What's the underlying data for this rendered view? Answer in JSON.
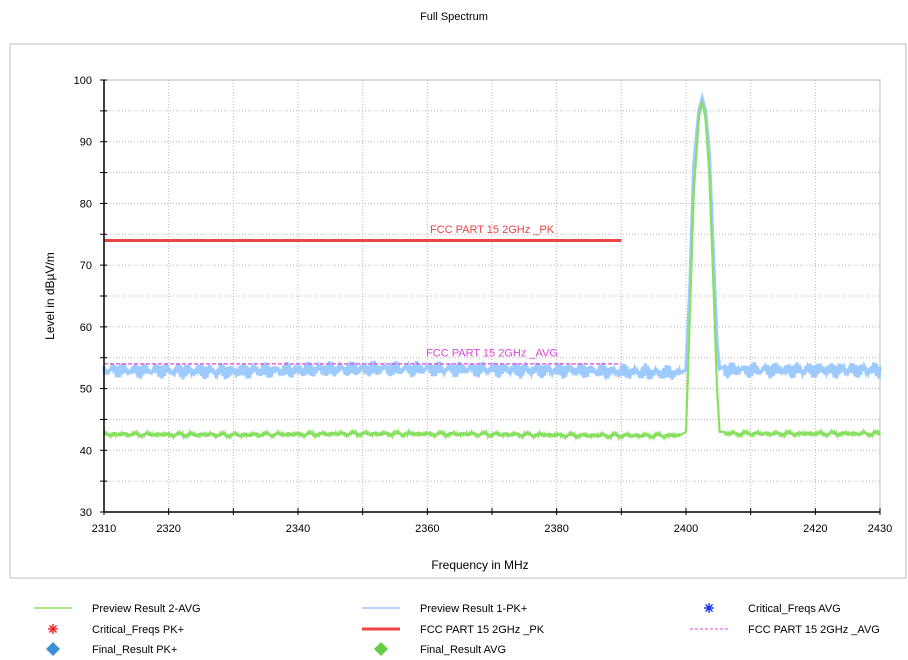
{
  "chart_data": {
    "type": "line",
    "title": "Full Spectrum",
    "xlabel": "Frequency in MHz",
    "ylabel": "Level in dBµV/m",
    "xlim": [
      2310,
      2430
    ],
    "ylim": [
      30,
      100
    ],
    "x_ticks": [
      2310,
      2320,
      2340,
      2360,
      2380,
      2400,
      2420,
      2430
    ],
    "y_ticks": [
      30,
      40,
      50,
      60,
      70,
      80,
      90,
      100
    ],
    "grid": true,
    "legend_position": "bottom",
    "series": [
      {
        "name": "Preview Result 2-AVG",
        "color": "#88e060",
        "x": [
          2310,
          2330,
          2350,
          2370,
          2385,
          2399,
          2400,
          2400.6,
          2401.2,
          2402,
          2402.5,
          2403,
          2403.6,
          2404.2,
          2404.8,
          2405.2,
          2406,
          2430
        ],
        "y": [
          42.6,
          42.5,
          42.7,
          42.6,
          42.4,
          42.4,
          43,
          62,
          82,
          94,
          96.5,
          94,
          85,
          68,
          50,
          43,
          42.7,
          42.7
        ]
      },
      {
        "name": "Preview Result 1-PK+",
        "color": "#99c8ff",
        "x": [
          2310,
          2330,
          2350,
          2370,
          2385,
          2399,
          2400,
          2400.6,
          2401.2,
          2402,
          2402.5,
          2403,
          2403.6,
          2404.2,
          2404.8,
          2405.2,
          2406,
          2430
        ],
        "y": [
          53,
          52.8,
          53.2,
          53.1,
          52.9,
          52.5,
          53,
          66,
          86,
          95,
          97,
          95,
          88,
          72,
          57,
          53.2,
          53,
          53
        ]
      },
      {
        "name": "FCC PART 15 2GHz _PK",
        "color": "#ee4444",
        "x": [
          2310,
          2390
        ],
        "y": [
          74,
          74
        ]
      },
      {
        "name": "FCC PART 15 2GHz _AVG",
        "color": "#dd44dd",
        "x": [
          2310,
          2390
        ],
        "y": [
          54,
          54
        ]
      }
    ],
    "annotations": [
      {
        "text": "FCC PART 15 2GHz _PK",
        "x": 2370,
        "y": 75.2,
        "color": "#ee4444"
      },
      {
        "text": "FCC PART 15 2GHz _AVG",
        "x": 2370,
        "y": 55.2,
        "color": "#dd44dd"
      }
    ],
    "legend": [
      {
        "label": "Preview Result 2-AVG",
        "symbol": "line",
        "color": "#88e060"
      },
      {
        "label": "Preview Result 1-PK+",
        "symbol": "line",
        "color": "#99c8ff"
      },
      {
        "label": "Critical_Freqs AVG",
        "symbol": "star",
        "color": "#1a2ee6"
      },
      {
        "label": "Critical_Freqs PK+",
        "symbol": "star",
        "color": "#ee2222"
      },
      {
        "label": "FCC PART 15 2GHz _PK",
        "symbol": "thick-line",
        "color": "#ee4444"
      },
      {
        "label": "FCC PART 15 2GHz _AVG",
        "symbol": "dash-line",
        "color": "#dd44dd"
      },
      {
        "label": "Final_Result PK+",
        "symbol": "diamond",
        "color": "#3d8fd6"
      },
      {
        "label": "Final_Result AVG",
        "symbol": "diamond",
        "color": "#66cc44"
      }
    ]
  }
}
